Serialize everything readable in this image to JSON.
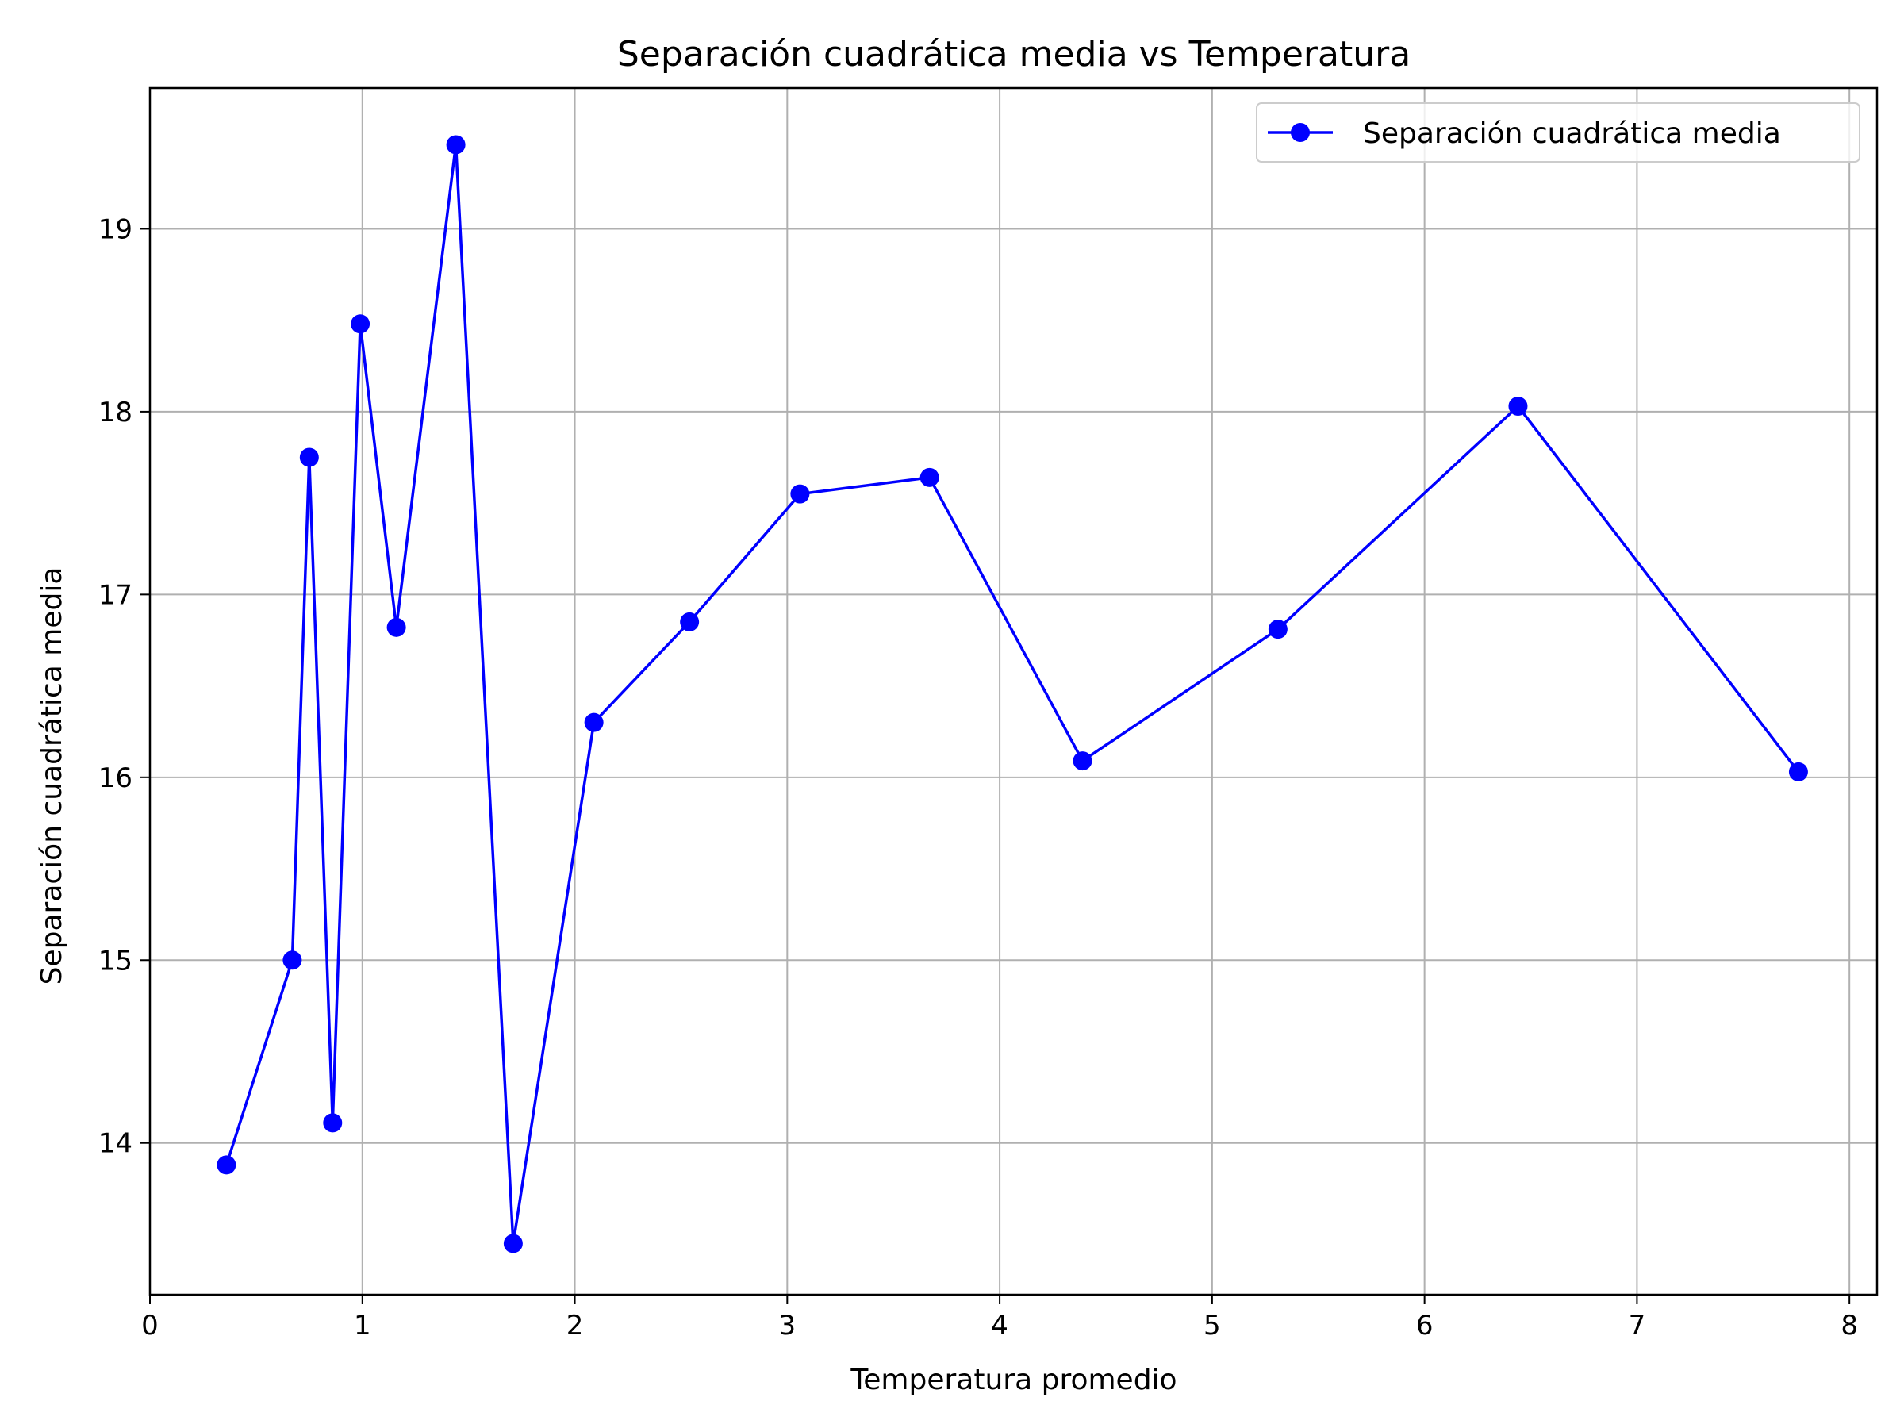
{
  "chart_data": {
    "type": "line",
    "title": "Separación cuadrática media vs Temperatura",
    "xlabel": "Temperatura promedio",
    "ylabel": "Separación cuadrática media",
    "xlim": [
      0,
      8.13
    ],
    "ylim": [
      13.17,
      19.77
    ],
    "xticks": [
      0,
      1,
      2,
      3,
      4,
      5,
      6,
      7,
      8
    ],
    "yticks": [
      14,
      15,
      16,
      17,
      18,
      19
    ],
    "grid": true,
    "legend_position": "top-right",
    "series": [
      {
        "name": "Separación cuadrática media",
        "color": "#0000ff",
        "marker": "circle",
        "x": [
          0.36,
          0.67,
          0.75,
          0.86,
          0.99,
          1.16,
          1.44,
          1.71,
          2.09,
          2.54,
          3.06,
          3.67,
          4.39,
          5.31,
          6.44,
          7.76
        ],
        "y": [
          13.88,
          15.0,
          17.75,
          14.11,
          18.48,
          16.82,
          19.46,
          13.45,
          16.3,
          16.85,
          17.55,
          17.64,
          16.09,
          16.81,
          18.03,
          16.03
        ]
      }
    ]
  }
}
